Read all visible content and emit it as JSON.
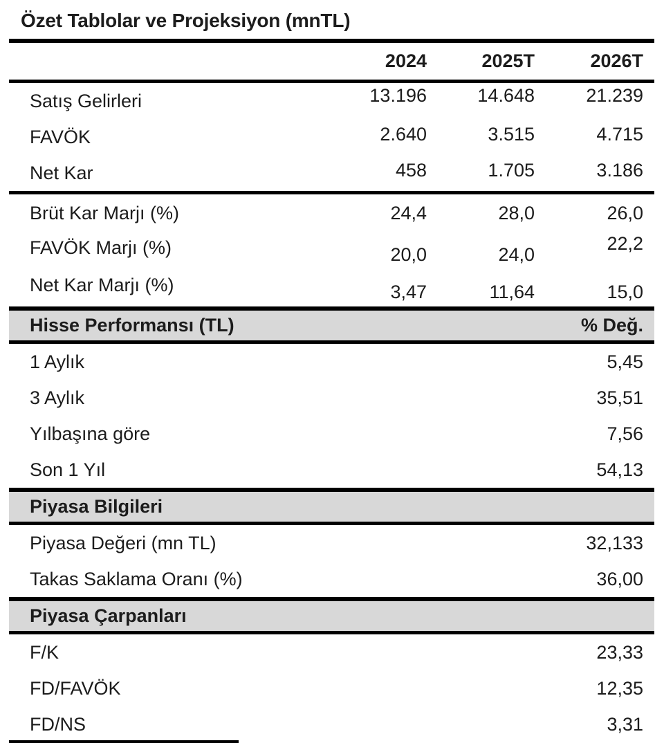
{
  "title": "Özet Tablolar ve Projeksiyon (mnTL)",
  "projection": {
    "columns": [
      "2024",
      "2025T",
      "2026T"
    ],
    "rows": [
      {
        "label": "Satış Gelirleri",
        "values": [
          "13.196",
          "14.648",
          "21.239"
        ]
      },
      {
        "label": "FAVÖK",
        "values": [
          "2.640",
          "3.515",
          "4.715"
        ]
      },
      {
        "label": "Net Kar",
        "values": [
          "458",
          "1.705",
          "3.186"
        ]
      },
      {
        "label": "Brüt Kar Marjı (%)",
        "values": [
          "24,4",
          "28,0",
          "26,0"
        ]
      },
      {
        "label": "FAVÖK Marjı (%)",
        "values": [
          "20,0",
          "24,0",
          "22,2"
        ]
      },
      {
        "label": "Net Kar Marjı (%)",
        "values": [
          "3,47",
          "11,64",
          "15,0"
        ]
      }
    ]
  },
  "sections": [
    {
      "header": "Hisse Performansı (TL)",
      "header_right": "% Değ.",
      "rows": [
        {
          "label": "1 Aylık",
          "value": "5,45"
        },
        {
          "label": "3 Aylık",
          "value": "35,51"
        },
        {
          "label": "Yılbaşına göre",
          "value": "7,56"
        },
        {
          "label": "Son 1 Yıl",
          "value": "54,13"
        }
      ]
    },
    {
      "header": "Piyasa Bilgileri",
      "header_right": "",
      "rows": [
        {
          "label": "Piyasa Değeri (mn TL)",
          "value": "32,133"
        },
        {
          "label": "Takas Saklama Oranı (%)",
          "value": "36,00"
        }
      ]
    },
    {
      "header": "Piyasa Çarpanları",
      "header_right": "",
      "rows": [
        {
          "label": "F/K",
          "value": "23,33"
        },
        {
          "label": "FD/FAVÖK",
          "value": "12,35"
        },
        {
          "label": "FD/NS",
          "value": "3,31"
        }
      ]
    }
  ],
  "colors": {
    "section_header_bg": "#d8d8d8",
    "rule": "#000000",
    "text": "#1c1c1c"
  }
}
